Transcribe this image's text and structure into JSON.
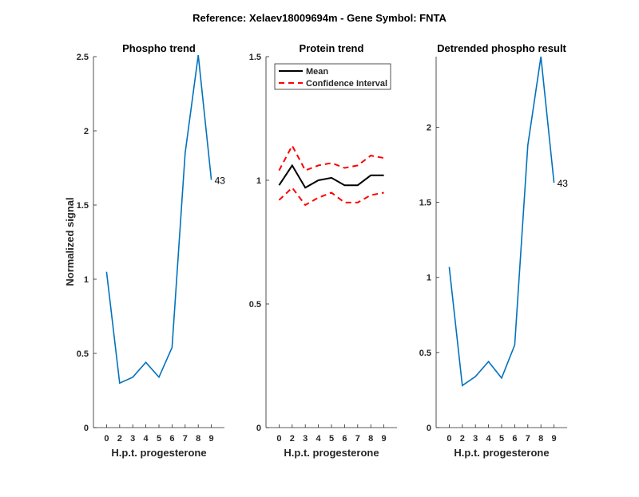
{
  "figure_title": "Reference:  Xelaev18009694m - Gene Symbol:  FNTA",
  "chart_data": [
    {
      "type": "line",
      "title": "Phospho trend",
      "xlabel": "H.p.t. progesterone",
      "ylabel": "Normalized signal",
      "categories": [
        "0",
        "2",
        "3",
        "4",
        "5",
        "6",
        "7",
        "8",
        "9"
      ],
      "ylim": [
        0,
        2.5
      ],
      "yticks": [
        "0",
        "0.5",
        "1",
        "1.5",
        "2",
        "2.5"
      ],
      "ytick_values": [
        0,
        0.5,
        1,
        1.5,
        2,
        2.5
      ],
      "series": [
        {
          "name": "Phospho",
          "color": "#0072BD",
          "values": [
            1.05,
            0.3,
            0.34,
            0.44,
            0.34,
            0.54,
            1.85,
            2.51,
            1.67
          ]
        }
      ],
      "annotation": "43"
    },
    {
      "type": "line",
      "title": "Protein trend",
      "xlabel": "H.p.t. progesterone",
      "categories": [
        "0",
        "2",
        "3",
        "4",
        "5",
        "6",
        "7",
        "8",
        "9"
      ],
      "ylim": [
        0,
        1.5
      ],
      "yticks": [
        "0",
        "0.5",
        "1",
        "1.5"
      ],
      "ytick_values": [
        0,
        0.5,
        1,
        1.5
      ],
      "legend": [
        "Mean",
        "Confidence Interval"
      ],
      "legend_position": "top-left",
      "series": [
        {
          "name": "Mean",
          "color": "#000000",
          "values": [
            0.98,
            1.06,
            0.97,
            1.0,
            1.01,
            0.98,
            0.98,
            1.02,
            1.02
          ]
        },
        {
          "name": "Confidence Interval upper",
          "color": "#FF0000",
          "dashed": true,
          "values": [
            1.04,
            1.14,
            1.04,
            1.06,
            1.07,
            1.05,
            1.06,
            1.1,
            1.09
          ]
        },
        {
          "name": "Confidence Interval lower",
          "color": "#FF0000",
          "dashed": true,
          "values": [
            0.92,
            0.97,
            0.9,
            0.93,
            0.95,
            0.91,
            0.91,
            0.94,
            0.95
          ]
        }
      ]
    },
    {
      "type": "line",
      "title": "Detrended phospho result",
      "xlabel": "H.p.t. progesterone",
      "categories": [
        "0",
        "2",
        "3",
        "4",
        "5",
        "6",
        "7",
        "8",
        "9"
      ],
      "ylim": [
        0,
        2.47
      ],
      "yticks": [
        "0",
        "0.5",
        "1",
        "1.5",
        "2"
      ],
      "ytick_values": [
        0,
        0.5,
        1,
        1.5,
        2
      ],
      "series": [
        {
          "name": "Detrended",
          "color": "#0072BD",
          "values": [
            1.07,
            0.28,
            0.34,
            0.44,
            0.33,
            0.55,
            1.88,
            2.47,
            1.63
          ]
        }
      ],
      "annotation": "43"
    }
  ]
}
